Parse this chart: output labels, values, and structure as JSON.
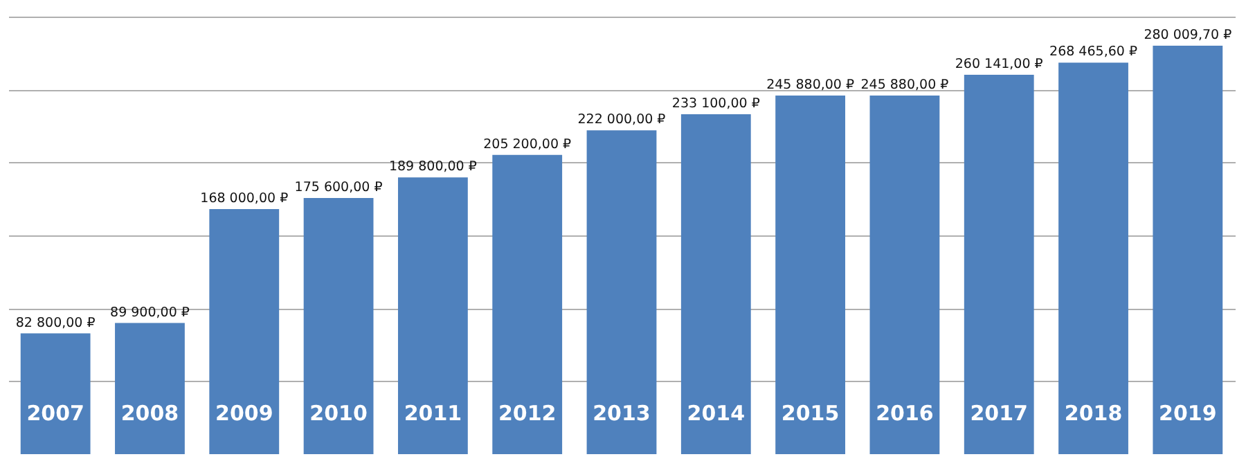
{
  "chart_data": {
    "type": "bar",
    "categories": [
      "2007",
      "2008",
      "2009",
      "2010",
      "2011",
      "2012",
      "2013",
      "2014",
      "2015",
      "2016",
      "2017",
      "2018",
      "2019"
    ],
    "values": [
      82800,
      89900,
      168000,
      175600,
      189800,
      205200,
      222000,
      233100,
      245880,
      245880,
      260141,
      268465.6,
      280009.7
    ],
    "value_labels": [
      "82 800,00 ₽",
      "89 900,00 ₽",
      "168 000,00 ₽",
      "175 600,00 ₽",
      "189 800,00 ₽",
      "205 200,00 ₽",
      "222 000,00 ₽",
      "233 100,00 ₽",
      "245 880,00 ₽",
      "245 880,00 ₽",
      "260 141,00 ₽",
      "268 465,60 ₽",
      "280 009,70 ₽"
    ],
    "color": "#4f81bd",
    "ylim": [
      0,
      300000
    ],
    "yticks": [
      {
        "value": 50000,
        "label": null
      },
      {
        "value": 100000,
        "label": null
      },
      {
        "value": 150000,
        "label": null
      },
      {
        "value": 200000,
        "label": null
      },
      {
        "value": 250000,
        "label": null
      },
      {
        "value": 300000,
        "label": null
      }
    ],
    "grid": "y",
    "tick_labels": "x"
  }
}
